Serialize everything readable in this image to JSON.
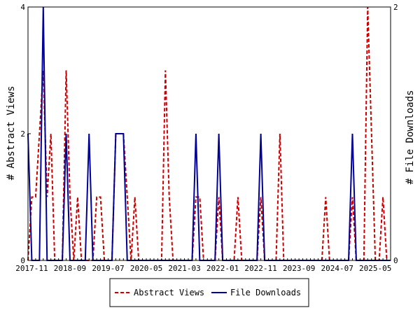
{
  "chart_data": {
    "type": "line",
    "title": "",
    "xlabel": "",
    "ylabel_left": "# Abstract Views",
    "ylabel_right": "# File Downloads",
    "ylim_left": [
      0,
      4
    ],
    "ylim_right": [
      0,
      2
    ],
    "yticks_left": [
      "0",
      "2",
      "4"
    ],
    "yticks_right": [
      "0",
      "1",
      "2"
    ],
    "x_range": [
      "2017-10",
      "2025-09"
    ],
    "x_tick_labels": [
      "2017-11",
      "2018-09",
      "2019-07",
      "2020-05",
      "2021-03",
      "2022-01",
      "2022-11",
      "2023-09",
      "2024-07",
      "2025-05"
    ],
    "grid": false,
    "legend_position": "bottom",
    "series": [
      {
        "name": "Abstract Views",
        "axis": "left",
        "color": "#cc0000",
        "style": "dashed",
        "points": [
          [
            "2017-10",
            0
          ],
          [
            "2017-11",
            1
          ],
          [
            "2017-12",
            1
          ],
          [
            "2018-01",
            2
          ],
          [
            "2018-02",
            3
          ],
          [
            "2018-03",
            1
          ],
          [
            "2018-04",
            2
          ],
          [
            "2018-05",
            0
          ],
          [
            "2018-06",
            0
          ],
          [
            "2018-07",
            0
          ],
          [
            "2018-08",
            3
          ],
          [
            "2018-09",
            1
          ],
          [
            "2018-10",
            0
          ],
          [
            "2018-11",
            1
          ],
          [
            "2018-12",
            0
          ],
          [
            "2019-01",
            0
          ],
          [
            "2019-02",
            0
          ],
          [
            "2019-03",
            0
          ],
          [
            "2019-04",
            1
          ],
          [
            "2019-05",
            1
          ],
          [
            "2019-06",
            0
          ],
          [
            "2019-07",
            0
          ],
          [
            "2019-08",
            0
          ],
          [
            "2019-09",
            2
          ],
          [
            "2019-10",
            2
          ],
          [
            "2019-11",
            2
          ],
          [
            "2019-12",
            1
          ],
          [
            "2020-01",
            0
          ],
          [
            "2020-02",
            1
          ],
          [
            "2020-03",
            0
          ],
          [
            "2020-04",
            0
          ],
          [
            "2020-05",
            0
          ],
          [
            "2020-06",
            0
          ],
          [
            "2020-07",
            0
          ],
          [
            "2020-08",
            0
          ],
          [
            "2020-09",
            0
          ],
          [
            "2020-10",
            3
          ],
          [
            "2020-11",
            1
          ],
          [
            "2020-12",
            0
          ],
          [
            "2021-01",
            0
          ],
          [
            "2021-02",
            0
          ],
          [
            "2021-03",
            0
          ],
          [
            "2021-04",
            0
          ],
          [
            "2021-05",
            0
          ],
          [
            "2021-06",
            1
          ],
          [
            "2021-07",
            1
          ],
          [
            "2021-08",
            0
          ],
          [
            "2021-09",
            0
          ],
          [
            "2021-10",
            0
          ],
          [
            "2021-11",
            0
          ],
          [
            "2021-12",
            1
          ],
          [
            "2022-01",
            0
          ],
          [
            "2022-02",
            0
          ],
          [
            "2022-03",
            0
          ],
          [
            "2022-04",
            0
          ],
          [
            "2022-05",
            1
          ],
          [
            "2022-06",
            0
          ],
          [
            "2022-07",
            0
          ],
          [
            "2022-08",
            0
          ],
          [
            "2022-09",
            0
          ],
          [
            "2022-10",
            0
          ],
          [
            "2022-11",
            1
          ],
          [
            "2022-12",
            0
          ],
          [
            "2023-01",
            0
          ],
          [
            "2023-02",
            0
          ],
          [
            "2023-03",
            0
          ],
          [
            "2023-04",
            2
          ],
          [
            "2023-05",
            0
          ],
          [
            "2023-06",
            0
          ],
          [
            "2023-07",
            0
          ],
          [
            "2023-08",
            0
          ],
          [
            "2023-09",
            0
          ],
          [
            "2023-10",
            0
          ],
          [
            "2023-11",
            0
          ],
          [
            "2023-12",
            0
          ],
          [
            "2024-01",
            0
          ],
          [
            "2024-02",
            0
          ],
          [
            "2024-03",
            0
          ],
          [
            "2024-04",
            1
          ],
          [
            "2024-05",
            0
          ],
          [
            "2024-06",
            0
          ],
          [
            "2024-07",
            0
          ],
          [
            "2024-08",
            0
          ],
          [
            "2024-09",
            0
          ],
          [
            "2024-10",
            0
          ],
          [
            "2024-11",
            1
          ],
          [
            "2024-12",
            0
          ],
          [
            "2025-01",
            0
          ],
          [
            "2025-02",
            0
          ],
          [
            "2025-03",
            4
          ],
          [
            "2025-04",
            2
          ],
          [
            "2025-05",
            0
          ],
          [
            "2025-06",
            0
          ],
          [
            "2025-07",
            1
          ],
          [
            "2025-08",
            0
          ],
          [
            "2025-09",
            0
          ]
        ]
      },
      {
        "name": "File Downloads",
        "axis": "right",
        "color": "#000099",
        "style": "solid",
        "points": [
          [
            "2017-10",
            1
          ],
          [
            "2017-11",
            0
          ],
          [
            "2017-12",
            0
          ],
          [
            "2018-01",
            0
          ],
          [
            "2018-02",
            2
          ],
          [
            "2018-03",
            0
          ],
          [
            "2018-04",
            0
          ],
          [
            "2018-05",
            0
          ],
          [
            "2018-06",
            0
          ],
          [
            "2018-07",
            0
          ],
          [
            "2018-08",
            1
          ],
          [
            "2018-09",
            0
          ],
          [
            "2018-10",
            0
          ],
          [
            "2018-11",
            0
          ],
          [
            "2018-12",
            0
          ],
          [
            "2019-01",
            0
          ],
          [
            "2019-02",
            1
          ],
          [
            "2019-03",
            0
          ],
          [
            "2019-04",
            0
          ],
          [
            "2019-05",
            0
          ],
          [
            "2019-06",
            0
          ],
          [
            "2019-07",
            0
          ],
          [
            "2019-08",
            0
          ],
          [
            "2019-09",
            1
          ],
          [
            "2019-10",
            1
          ],
          [
            "2019-11",
            1
          ],
          [
            "2019-12",
            0
          ],
          [
            "2020-01",
            0
          ],
          [
            "2020-02",
            0
          ],
          [
            "2020-03",
            0
          ],
          [
            "2020-04",
            0
          ],
          [
            "2020-05",
            0
          ],
          [
            "2020-06",
            0
          ],
          [
            "2020-07",
            0
          ],
          [
            "2020-08",
            0
          ],
          [
            "2020-09",
            0
          ],
          [
            "2020-10",
            0
          ],
          [
            "2020-11",
            0
          ],
          [
            "2020-12",
            0
          ],
          [
            "2021-01",
            0
          ],
          [
            "2021-02",
            0
          ],
          [
            "2021-03",
            0
          ],
          [
            "2021-04",
            0
          ],
          [
            "2021-05",
            0
          ],
          [
            "2021-06",
            1
          ],
          [
            "2021-07",
            0
          ],
          [
            "2021-08",
            0
          ],
          [
            "2021-09",
            0
          ],
          [
            "2021-10",
            0
          ],
          [
            "2021-11",
            0
          ],
          [
            "2021-12",
            1
          ],
          [
            "2022-01",
            0
          ],
          [
            "2022-02",
            0
          ],
          [
            "2022-03",
            0
          ],
          [
            "2022-04",
            0
          ],
          [
            "2022-05",
            0
          ],
          [
            "2022-06",
            0
          ],
          [
            "2022-07",
            0
          ],
          [
            "2022-08",
            0
          ],
          [
            "2022-09",
            0
          ],
          [
            "2022-10",
            0
          ],
          [
            "2022-11",
            1
          ],
          [
            "2022-12",
            0
          ],
          [
            "2023-01",
            0
          ],
          [
            "2023-02",
            0
          ],
          [
            "2023-03",
            0
          ],
          [
            "2023-04",
            0
          ],
          [
            "2023-05",
            0
          ],
          [
            "2023-06",
            0
          ],
          [
            "2023-07",
            0
          ],
          [
            "2023-08",
            0
          ],
          [
            "2023-09",
            0
          ],
          [
            "2023-10",
            0
          ],
          [
            "2023-11",
            0
          ],
          [
            "2023-12",
            0
          ],
          [
            "2024-01",
            0
          ],
          [
            "2024-02",
            0
          ],
          [
            "2024-03",
            0
          ],
          [
            "2024-04",
            0
          ],
          [
            "2024-05",
            0
          ],
          [
            "2024-06",
            0
          ],
          [
            "2024-07",
            0
          ],
          [
            "2024-08",
            0
          ],
          [
            "2024-09",
            0
          ],
          [
            "2024-10",
            0
          ],
          [
            "2024-11",
            1
          ],
          [
            "2024-12",
            0
          ],
          [
            "2025-01",
            0
          ],
          [
            "2025-02",
            0
          ],
          [
            "2025-03",
            0
          ],
          [
            "2025-04",
            0
          ],
          [
            "2025-05",
            0
          ],
          [
            "2025-06",
            0
          ],
          [
            "2025-07",
            0
          ],
          [
            "2025-08",
            0
          ],
          [
            "2025-09",
            0
          ]
        ]
      }
    ]
  }
}
